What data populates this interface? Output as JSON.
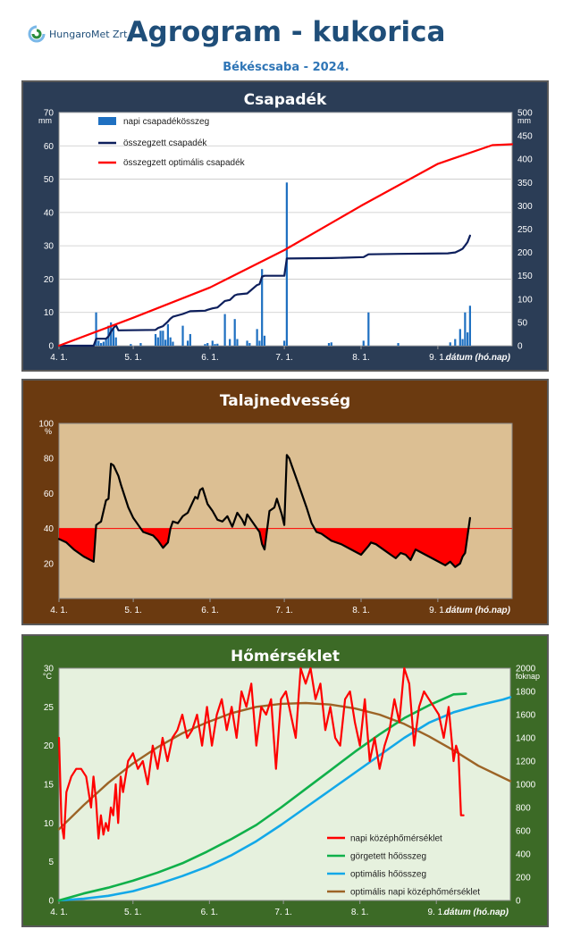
{
  "header": {
    "logo_text": "HungaroMet Zrt.",
    "title": "Agrogram - kukorica",
    "subtitle": "Békéscsaba - 2024."
  },
  "colors": {
    "title": "#1f4e79",
    "panel_precip_bg": "#2b3d56",
    "panel_soil_bg": "#6b3a10",
    "panel_temp_bg": "#3c6a26",
    "soil_plot_bg": "#dcbf93",
    "temp_plot_bg": "#e6f1de",
    "red": "#ff0000",
    "navy": "#0d1f5c",
    "bar_blue": "#1f70c1",
    "green": "#10b04a",
    "cyan": "#13a8e8",
    "brown": "#9c6426"
  },
  "chart_data": [
    {
      "type": "bar",
      "title": "Csapadék",
      "y_unit_left": "mm",
      "y_unit_right": "mm",
      "xlabel": "dátum (hó.nap)",
      "x_ticks": [
        "4. 1.",
        "5. 1.",
        "6. 1.",
        "7. 1.",
        "8. 1.",
        "9. 1."
      ],
      "x_tick_days": [
        0,
        30,
        61,
        91,
        122,
        153
      ],
      "xlim": [
        0,
        183
      ],
      "ylim_left": [
        0,
        70
      ],
      "y_ticks_left": [
        0,
        10,
        20,
        30,
        40,
        50,
        60,
        70
      ],
      "ylim_right": [
        0,
        500
      ],
      "y_ticks_right": [
        0,
        50,
        100,
        150,
        200,
        250,
        300,
        350,
        400,
        450,
        500
      ],
      "legend": [
        "napi csapadékösszeg",
        "összegzett csapadék",
        "összegzett optimális csapadék"
      ],
      "series": [
        {
          "name": "napi csapadékösszeg",
          "axis": "left",
          "x": [
            15,
            16,
            17,
            18,
            19,
            20,
            21,
            22,
            23,
            29,
            33,
            39,
            40,
            41,
            42,
            43,
            44,
            45,
            46,
            50,
            52,
            53,
            59,
            60,
            62,
            63,
            64,
            67,
            69,
            71,
            72,
            76,
            77,
            80,
            81,
            82,
            83,
            91,
            92,
            109,
            110,
            123,
            125,
            137,
            158,
            160,
            162,
            163,
            164,
            165,
            166
          ],
          "values": [
            10,
            1.5,
            0.8,
            1.2,
            2,
            6,
            7,
            5,
            2.5,
            0.5,
            0.8,
            3.5,
            2.5,
            4.5,
            4.5,
            1.8,
            6.5,
            2.5,
            1.2,
            6,
            1.5,
            3.5,
            0.5,
            0.8,
            1.5,
            0.5,
            0.6,
            9.5,
            2,
            8,
            2,
            1.5,
            0.8,
            5,
            1.5,
            23,
            3,
            1.5,
            49,
            0.8,
            1,
            1.5,
            10,
            0.8,
            1,
            2,
            5,
            2,
            10,
            4,
            12
          ]
        },
        {
          "name": "összegzett csapadék",
          "axis": "right",
          "x": [
            0,
            14,
            15,
            19,
            20,
            21,
            22,
            23,
            24,
            39,
            40,
            42,
            43,
            44,
            45,
            46,
            50,
            52,
            53,
            59,
            60,
            62,
            64,
            67,
            69,
            71,
            72,
            76,
            80,
            81,
            82,
            83,
            91,
            92,
            110,
            123,
            125,
            137,
            157,
            160,
            162,
            163,
            164,
            165,
            166
          ],
          "values": [
            0,
            0,
            15,
            15,
            20,
            30,
            38,
            44,
            33,
            34,
            38,
            42,
            47,
            52,
            58,
            62,
            68,
            72,
            74,
            75,
            77,
            80,
            82,
            96,
            98,
            108,
            110,
            112,
            130,
            132,
            148,
            150,
            150,
            187,
            188,
            190,
            196,
            197,
            198,
            200,
            205,
            208,
            215,
            222,
            236
          ]
        },
        {
          "name": "összegzett optimális csapadék",
          "axis": "right",
          "x": [
            0,
            30,
            61,
            91,
            122,
            153,
            175,
            183
          ],
          "values": [
            0,
            60,
            125,
            205,
            300,
            390,
            430,
            432
          ]
        }
      ]
    },
    {
      "type": "line",
      "title": "Talajnedvesség",
      "y_unit": "%",
      "xlabel": "dátum (hó.nap)",
      "x_ticks": [
        "4. 1.",
        "5. 1.",
        "6. 1.",
        "7. 1.",
        "8. 1.",
        "9. 1."
      ],
      "x_tick_days": [
        0,
        30,
        61,
        91,
        122,
        153
      ],
      "xlim": [
        0,
        183
      ],
      "ylim": [
        0,
        100
      ],
      "y_ticks": [
        20,
        40,
        60,
        80,
        100
      ],
      "threshold": 40,
      "series": [
        {
          "name": "",
          "x": [
            0,
            3,
            6,
            10,
            14,
            15,
            16,
            17,
            19,
            20,
            21,
            22,
            24,
            25,
            28,
            30,
            34,
            38,
            40,
            42,
            44,
            45,
            46,
            48,
            50,
            52,
            54,
            55,
            56,
            57,
            58,
            60,
            62,
            64,
            66,
            68,
            70,
            72,
            74,
            75,
            76,
            78,
            80,
            81,
            82,
            83,
            85,
            87,
            88,
            90,
            91,
            92,
            93,
            94,
            96,
            98,
            100,
            102,
            104,
            106,
            108,
            110,
            114,
            118,
            122,
            125,
            126,
            128,
            130,
            134,
            136,
            138,
            140,
            142,
            144,
            148,
            152,
            156,
            158,
            160,
            162,
            163,
            164,
            166
          ],
          "values": [
            34,
            32,
            28,
            24,
            21,
            42,
            43,
            44,
            56,
            57,
            77,
            76,
            70,
            65,
            52,
            46,
            38,
            36,
            33,
            29,
            32,
            40,
            44,
            43,
            47,
            49,
            55,
            58,
            57,
            62,
            63,
            54,
            50,
            45,
            44,
            47,
            41,
            49,
            45,
            42,
            48,
            44,
            40,
            38,
            31,
            28,
            50,
            52,
            57,
            48,
            42,
            82,
            80,
            76,
            68,
            60,
            52,
            43,
            38,
            37,
            35,
            33,
            31,
            28,
            25,
            30,
            32,
            31,
            29,
            25,
            23,
            26,
            25,
            22,
            28,
            25,
            22,
            19,
            21,
            18,
            20,
            24,
            26,
            46
          ]
        }
      ]
    },
    {
      "type": "line",
      "title": "Hőmérséklet",
      "y_unit_left": "°C",
      "y_unit_right": "foknap",
      "xlabel": "dátum (hó.nap)",
      "x_ticks": [
        "4. 1.",
        "5. 1.",
        "6. 1.",
        "7. 1.",
        "8. 1.",
        "9. 1."
      ],
      "x_tick_days": [
        0,
        30,
        61,
        91,
        122,
        153
      ],
      "xlim": [
        0,
        183
      ],
      "ylim_left": [
        0,
        30
      ],
      "y_ticks_left": [
        0,
        5,
        10,
        15,
        20,
        25,
        30
      ],
      "ylim_right": [
        0,
        2000
      ],
      "y_ticks_right": [
        0,
        200,
        400,
        600,
        800,
        1000,
        1200,
        1400,
        1600,
        1800,
        2000
      ],
      "legend": [
        "napi középhőmérséklet",
        "görgetett hőösszeg",
        "optimális hőösszeg",
        "optimális napi középhőmérséklet"
      ],
      "series": [
        {
          "name": "napi középhőmérséklet",
          "axis": "left",
          "x": [
            0,
            1,
            2,
            3,
            5,
            7,
            9,
            11,
            13,
            14,
            15,
            16,
            17,
            18,
            19,
            20,
            21,
            22,
            23,
            24,
            25,
            26,
            28,
            30,
            32,
            34,
            36,
            38,
            40,
            42,
            44,
            46,
            48,
            50,
            52,
            54,
            56,
            58,
            60,
            62,
            64,
            66,
            68,
            70,
            72,
            74,
            76,
            78,
            80,
            82,
            84,
            86,
            88,
            90,
            92,
            94,
            96,
            98,
            100,
            102,
            104,
            106,
            108,
            110,
            112,
            114,
            116,
            118,
            120,
            122,
            124,
            126,
            128,
            130,
            132,
            134,
            136,
            138,
            140,
            142,
            144,
            146,
            148,
            150,
            152,
            154,
            156,
            158,
            160,
            161,
            162,
            163,
            164
          ],
          "values": [
            21,
            10,
            8,
            14,
            16,
            17,
            17,
            16,
            12,
            16,
            13,
            8,
            11,
            8.5,
            10,
            9,
            12,
            11,
            15,
            10,
            16,
            14,
            18,
            19,
            17,
            18,
            15,
            20,
            17,
            21,
            18,
            21,
            22,
            24,
            21,
            22,
            24,
            20,
            25,
            20,
            24,
            26,
            22,
            25,
            21,
            27,
            25,
            28,
            20,
            25,
            24,
            26,
            17,
            26,
            27,
            24,
            21,
            30,
            28,
            30,
            26,
            28,
            22,
            25,
            21,
            20,
            26,
            27,
            23,
            20,
            26,
            18,
            21,
            17,
            20,
            22,
            26,
            23,
            30,
            28,
            20,
            25,
            27,
            26,
            25,
            24,
            21,
            25,
            18,
            20,
            19,
            11,
            11
          ]
        },
        {
          "name": "görgetett hőösszeg",
          "axis": "right",
          "x": [
            0,
            10,
            20,
            30,
            40,
            50,
            60,
            70,
            80,
            90,
            100,
            110,
            120,
            130,
            140,
            150,
            160,
            165
          ],
          "values": [
            0,
            60,
            110,
            170,
            240,
            320,
            420,
            530,
            650,
            800,
            960,
            1120,
            1280,
            1430,
            1570,
            1680,
            1775,
            1780
          ]
        },
        {
          "name": "optimális hőösszeg",
          "axis": "right",
          "x": [
            0,
            10,
            20,
            30,
            40,
            50,
            60,
            70,
            80,
            90,
            100,
            110,
            120,
            130,
            140,
            150,
            160,
            170,
            180,
            183
          ],
          "values": [
            0,
            15,
            40,
            80,
            140,
            210,
            290,
            390,
            510,
            650,
            800,
            950,
            1100,
            1250,
            1400,
            1530,
            1620,
            1680,
            1730,
            1750
          ]
        },
        {
          "name": "optimális napi középhőmérséklet",
          "axis": "left",
          "x": [
            0,
            10,
            20,
            30,
            40,
            50,
            60,
            70,
            80,
            90,
            100,
            110,
            120,
            130,
            140,
            150,
            160,
            170,
            183
          ],
          "values": [
            9.2,
            12.3,
            15.2,
            17.7,
            19.8,
            21.6,
            23.0,
            24.2,
            25.0,
            25.4,
            25.5,
            25.3,
            24.8,
            24.0,
            22.8,
            21.2,
            19.4,
            17.4,
            15.4
          ]
        }
      ]
    }
  ]
}
